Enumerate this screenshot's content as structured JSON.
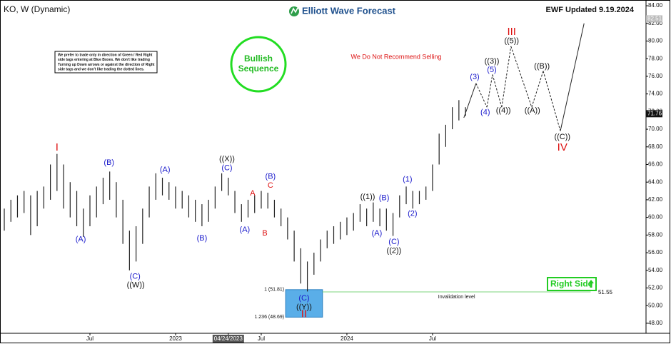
{
  "chart_data": {
    "type": "ohlc",
    "title": "KO, W (Dynamic)",
    "brand": "Elliott Wave Forecast",
    "updated": "EWF Updated 9.19.2024",
    "note": [
      "We prefer to trade only in direction of Green / Red Right",
      "side tags entering at Blue Boxes. We don't like trading",
      "Turning up Down arrows or against the direction of Right",
      "side tags and we don't like trading the dotted lines."
    ],
    "badge": [
      "Bullish",
      "Sequence"
    ],
    "warning": "We Do Not Recommend Selling",
    "right_side": "Right Side",
    "color": "#222222",
    "bars": {
      "x": [
        0,
        2,
        4,
        6,
        8,
        10,
        12,
        14,
        16,
        18,
        20,
        22,
        24,
        26,
        28,
        30,
        32,
        34,
        36,
        38,
        40,
        42,
        44,
        46,
        48,
        50,
        52,
        54,
        56,
        58,
        60,
        62,
        64,
        66,
        68,
        70,
        72,
        74,
        76,
        78,
        80,
        82,
        84,
        86,
        88,
        90,
        92,
        94,
        96,
        98,
        100,
        102,
        104,
        106,
        108,
        110,
        112,
        114,
        116,
        118,
        120,
        122,
        124,
        126,
        128,
        130,
        132,
        134,
        136,
        138,
        140
      ],
      "low": [
        58.5,
        59.5,
        60,
        60.5,
        58,
        59,
        61,
        62,
        63,
        61,
        60,
        59,
        57.8,
        59,
        60,
        61.5,
        62,
        60,
        57,
        54,
        55,
        57,
        60,
        62,
        62.5,
        62,
        61,
        61,
        60,
        59.5,
        59,
        59.5,
        61,
        63,
        62.5,
        60.5,
        59.5,
        60,
        60.5,
        61,
        61,
        60,
        59,
        57.5,
        55,
        52.5,
        51.6,
        53.5,
        55,
        56.5,
        57,
        57.5,
        58,
        58.5,
        59.5,
        59,
        59.5,
        59,
        58.5,
        57.9,
        60,
        61.5,
        61,
        61.5,
        62,
        63,
        66,
        68,
        70,
        71,
        71.5
      ],
      "high": [
        61,
        62,
        62.5,
        63,
        62.5,
        63,
        63.5,
        66,
        67.2,
        66,
        64,
        63,
        61,
        62.5,
        63.5,
        64.5,
        65.2,
        64,
        62,
        58.5,
        59,
        61,
        63.5,
        65,
        64.5,
        64,
        63.5,
        63,
        62.5,
        62,
        61.5,
        62,
        63.5,
        65,
        64.5,
        63,
        61.5,
        62,
        62.5,
        63,
        62.8,
        62,
        61,
        60,
        58.5,
        56.5,
        55,
        56,
        57.5,
        58.5,
        59,
        59.5,
        60,
        60.5,
        61.5,
        61,
        61.7,
        61,
        61,
        60.5,
        62.5,
        63.5,
        63,
        63,
        63.5,
        66,
        69.5,
        70.5,
        72.5,
        73.3,
        72.5
      ]
    },
    "projection": {
      "x": [
        139.5,
        143.2,
        146.5,
        148.2,
        151,
        153.8,
        160.1,
        163.6,
        168.8,
        176
      ],
      "y": [
        71.3,
        75.2,
        72.5,
        76.2,
        72.5,
        79.4,
        72.5,
        76.6,
        69.8,
        82
      ]
    },
    "annotations": [
      {
        "text": "I",
        "x": 16,
        "y": 67.9,
        "color": "#dd1111"
      },
      {
        "text": "(A)",
        "x": 23.2,
        "y": 57.5,
        "color": "#1a1acc"
      },
      {
        "text": "(B)",
        "x": 31.8,
        "y": 66.2,
        "color": "#1a1acc"
      },
      {
        "text": "(C)",
        "x": 39.7,
        "y": 53.3,
        "color": "#1a1acc"
      },
      {
        "text": "((W))",
        "x": 39.9,
        "y": 52.3,
        "color": "#111111"
      },
      {
        "text": "(A)",
        "x": 48.8,
        "y": 65.4,
        "color": "#1a1acc"
      },
      {
        "text": "(B)",
        "x": 60,
        "y": 57.6,
        "color": "#1a1acc"
      },
      {
        "text": "((X))",
        "x": 67.6,
        "y": 66.6,
        "color": "#111111"
      },
      {
        "text": "(C)",
        "x": 67.6,
        "y": 65.6,
        "color": "#1a1acc"
      },
      {
        "text": "A",
        "x": 75.4,
        "y": 62.7,
        "color": "#dd1111"
      },
      {
        "text": "(A)",
        "x": 73,
        "y": 58.6,
        "color": "#1a1acc"
      },
      {
        "text": "B",
        "x": 79.1,
        "y": 58.2,
        "color": "#dd1111"
      },
      {
        "text": "(B)",
        "x": 80.8,
        "y": 64.6,
        "color": "#1a1acc"
      },
      {
        "text": "C",
        "x": 80.8,
        "y": 63.6,
        "color": "#dd1111"
      },
      {
        "text": "(C)",
        "x": 91,
        "y": 50.8,
        "color": "#1a1acc"
      },
      {
        "text": "((Y))",
        "x": 91,
        "y": 49.8,
        "color": "#111111"
      },
      {
        "text": "II",
        "x": 91,
        "y": 49,
        "color": "#dd1111"
      },
      {
        "text": "((1))",
        "x": 110.3,
        "y": 62.3,
        "color": "#111111"
      },
      {
        "text": "(B)",
        "x": 115.3,
        "y": 62.2,
        "color": "#1a1acc"
      },
      {
        "text": "(A)",
        "x": 113.1,
        "y": 58.2,
        "color": "#1a1acc"
      },
      {
        "text": "(C)",
        "x": 118.3,
        "y": 57.2,
        "color": "#1a1acc"
      },
      {
        "text": "((2))",
        "x": 118.3,
        "y": 56.2,
        "color": "#111111"
      },
      {
        "text": "(1)",
        "x": 122.4,
        "y": 64.3,
        "color": "#1a1acc"
      },
      {
        "text": "(2)",
        "x": 123.9,
        "y": 60.4,
        "color": "#1a1acc"
      },
      {
        "text": "(3)",
        "x": 142.8,
        "y": 75.9,
        "color": "#1a1acc"
      },
      {
        "text": "(4)",
        "x": 146,
        "y": 71.9,
        "color": "#1a1acc"
      },
      {
        "text": "((3))",
        "x": 148,
        "y": 77.7,
        "color": "#111111"
      },
      {
        "text": "(5)",
        "x": 148,
        "y": 76.7,
        "color": "#1a1acc"
      },
      {
        "text": "((4))",
        "x": 151.5,
        "y": 72.1,
        "color": "#111111"
      },
      {
        "text": "III",
        "x": 154,
        "y": 81,
        "color": "#dd1111"
      },
      {
        "text": "((5))",
        "x": 154,
        "y": 80,
        "color": "#111111"
      },
      {
        "text": "((A))",
        "x": 160.3,
        "y": 72.1,
        "color": "#111111"
      },
      {
        "text": "((B))",
        "x": 163.2,
        "y": 77.1,
        "color": "#111111"
      },
      {
        "text": "((C))",
        "x": 169.4,
        "y": 69.1,
        "color": "#111111"
      },
      {
        "text": "IV",
        "x": 169.4,
        "y": 67.9,
        "color": "#dd1111"
      }
    ],
    "fib_box": {
      "x": [
        85.4,
        96.6
      ],
      "color": "#5aaee8",
      "levels": [
        {
          "value": 51.81,
          "label": "1 (51.81)"
        },
        {
          "value": 48.69,
          "label": "1.236 (48.69)"
        }
      ]
    },
    "invalidation": {
      "label": "Invalidation level",
      "value": 51.55,
      "x": [
        96.6,
        178
      ],
      "color": "#7cd67c"
    },
    "price_tags": [
      82.51,
      71.76
    ],
    "xlim": [
      -1.3,
      194.8
    ],
    "ylim": [
      46.86,
      84.49
    ],
    "xticks": [
      {
        "value": 26,
        "label": "Jul"
      },
      {
        "value": 52,
        "label": "2023"
      },
      {
        "value": 68,
        "label": "04/24/2023"
      },
      {
        "value": 78,
        "label": "Jul"
      },
      {
        "value": 104,
        "label": "2024"
      },
      {
        "value": 130,
        "label": "Jul"
      }
    ],
    "yticks": [
      {
        "value": 48,
        "label": "48.00"
      },
      {
        "value": 50,
        "label": "50.00"
      },
      {
        "value": 52,
        "label": "52.00"
      },
      {
        "value": 54,
        "label": "54.00"
      },
      {
        "value": 56,
        "label": "56.00"
      },
      {
        "value": 58,
        "label": "58.00"
      },
      {
        "value": 60,
        "label": "60.00"
      },
      {
        "value": 62,
        "label": "62.00"
      },
      {
        "value": 64,
        "label": "64.00"
      },
      {
        "value": 66,
        "label": "66.00"
      },
      {
        "value": 68,
        "label": "68.00"
      },
      {
        "value": 70,
        "label": "70.00"
      },
      {
        "value": 72,
        "label": "72.00"
      },
      {
        "value": 74,
        "label": "74.00"
      },
      {
        "value": 76,
        "label": "76.00"
      },
      {
        "value": 78,
        "label": "78.00"
      },
      {
        "value": 80,
        "label": "80.00"
      },
      {
        "value": 82,
        "label": "82.00"
      },
      {
        "value": 84,
        "label": "84.00"
      }
    ]
  }
}
